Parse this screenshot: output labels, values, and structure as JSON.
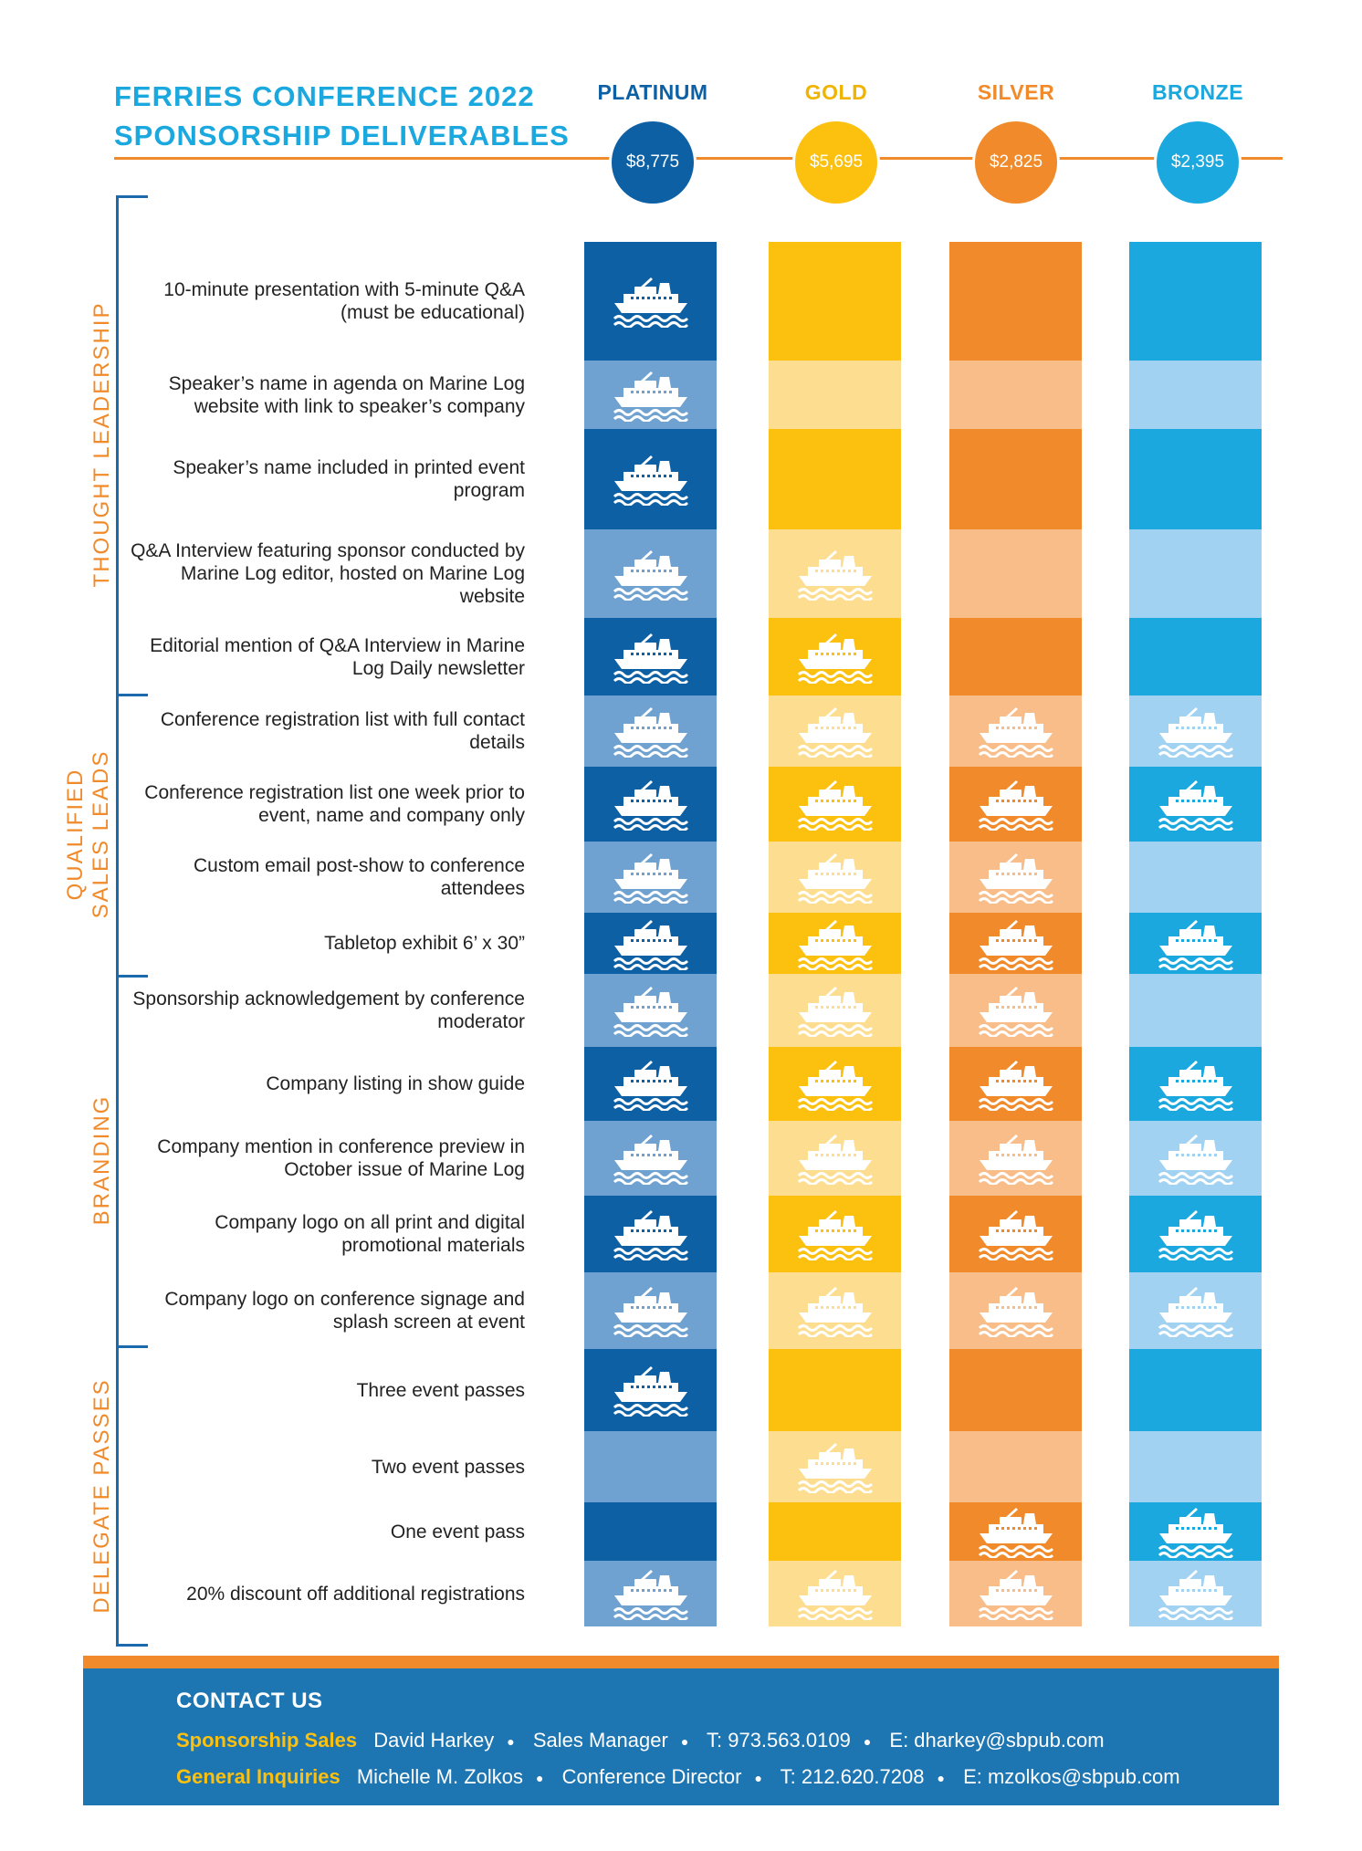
{
  "title": {
    "line1": "FERRIES CONFERENCE 2022",
    "line2": "SPONSORSHIP DELIVERABLES"
  },
  "tiers": [
    {
      "name": "PLATINUM",
      "price": "$8,775",
      "color": "#0d60a4",
      "dark": "#0d60a4",
      "light": "#6fa2d0"
    },
    {
      "name": "GOLD",
      "price": "$5,695",
      "color": "#f0b400",
      "dark": "#fcc00f",
      "light": "#fdde91"
    },
    {
      "name": "SILVER",
      "price": "$2,825",
      "color": "#f08a2a",
      "dark": "#f08a2a",
      "light": "#f8bd89"
    },
    {
      "name": "BRONZE",
      "price": "$2,395",
      "color": "#1ba8df",
      "dark": "#1ba8df",
      "light": "#a2d2f1"
    }
  ],
  "sections": [
    {
      "label": "THOUGHT LEADERSHIP"
    },
    {
      "label_line1": "QUALIFIED",
      "label_line2": "SALES LEADS"
    },
    {
      "label": "BRANDING"
    },
    {
      "label": "DELEGATE PASSES"
    }
  ],
  "rows": [
    {
      "label": "10-minute presentation with 5-minute Q&A (must be educational)",
      "included": [
        true,
        false,
        false,
        false
      ]
    },
    {
      "label": "Speaker’s name in agenda on Marine Log website with link to speaker’s company",
      "included": [
        true,
        false,
        false,
        false
      ]
    },
    {
      "label": "Speaker’s name included in printed event program",
      "included": [
        true,
        false,
        false,
        false
      ]
    },
    {
      "label": "Q&A Interview featuring sponsor conducted by Marine Log editor, hosted on Marine Log website",
      "included": [
        true,
        true,
        false,
        false
      ]
    },
    {
      "label": "Editorial mention of Q&A Interview in Marine Log Daily newsletter",
      "included": [
        true,
        true,
        false,
        false
      ]
    },
    {
      "label": "Conference registration list with full contact details",
      "included": [
        true,
        true,
        true,
        true
      ]
    },
    {
      "label": "Conference registration list one week prior to event, name and company only",
      "included": [
        true,
        true,
        true,
        true
      ]
    },
    {
      "label": "Custom email post-show to conference attendees",
      "included": [
        true,
        true,
        true,
        false
      ]
    },
    {
      "label": "Tabletop exhibit 6’ x 30”",
      "included": [
        true,
        true,
        true,
        true
      ]
    },
    {
      "label": "Sponsorship acknowledgement by conference moderator",
      "included": [
        true,
        true,
        true,
        false
      ]
    },
    {
      "label": "Company listing in show guide",
      "included": [
        true,
        true,
        true,
        true
      ]
    },
    {
      "label": "Company mention in conference preview in October issue of Marine Log",
      "included": [
        true,
        true,
        true,
        true
      ]
    },
    {
      "label": "Company logo on all print and digital promotional materials",
      "included": [
        true,
        true,
        true,
        true
      ]
    },
    {
      "label": "Company logo on conference signage and splash screen at event",
      "included": [
        true,
        true,
        true,
        true
      ]
    },
    {
      "label": "Three event passes",
      "included": [
        true,
        false,
        false,
        false
      ]
    },
    {
      "label": "Two event passes",
      "included": [
        false,
        true,
        false,
        false
      ]
    },
    {
      "label": "One event pass",
      "included": [
        false,
        false,
        true,
        true
      ]
    },
    {
      "label": "20% discount off additional registrations",
      "included": [
        true,
        true,
        true,
        true
      ]
    }
  ],
  "icon": "ferry-icon",
  "contact": {
    "title": "CONTACT US",
    "lines": [
      {
        "label": "Sponsorship Sales",
        "name": "David Harkey",
        "role": "Sales Manager",
        "phone": "T: 973.563.0109",
        "email": "E: dharkey@sbpub.com"
      },
      {
        "label": "General Inquiries",
        "name": "Michelle M. Zolkos",
        "role": "Conference Director",
        "phone": "T: 212.620.7208",
        "email": "E: mzolkos@sbpub.com"
      }
    ]
  }
}
